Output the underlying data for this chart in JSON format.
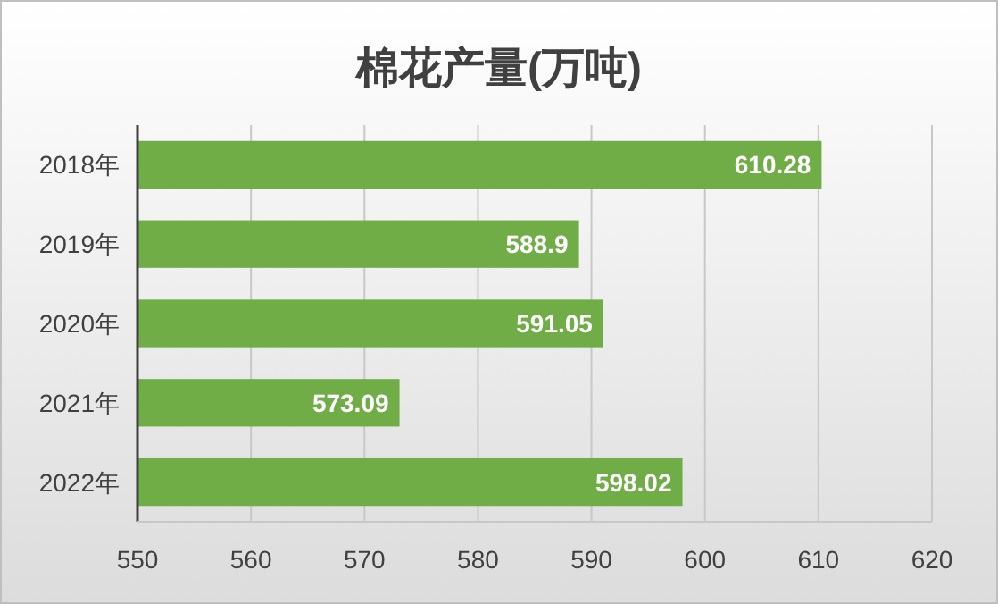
{
  "chart_data": {
    "type": "bar",
    "orientation": "horizontal",
    "title": "棉花产量(万吨)",
    "categories": [
      "2018年",
      "2019年",
      "2020年",
      "2021年",
      "2022年"
    ],
    "values": [
      610.28,
      588.9,
      591.05,
      573.09,
      598.02
    ],
    "color": "#70ad47",
    "xlim": [
      550,
      620
    ],
    "xticks": [
      550,
      560,
      570,
      580,
      590,
      600,
      610,
      620
    ],
    "grid": "x",
    "data_labels": true
  }
}
